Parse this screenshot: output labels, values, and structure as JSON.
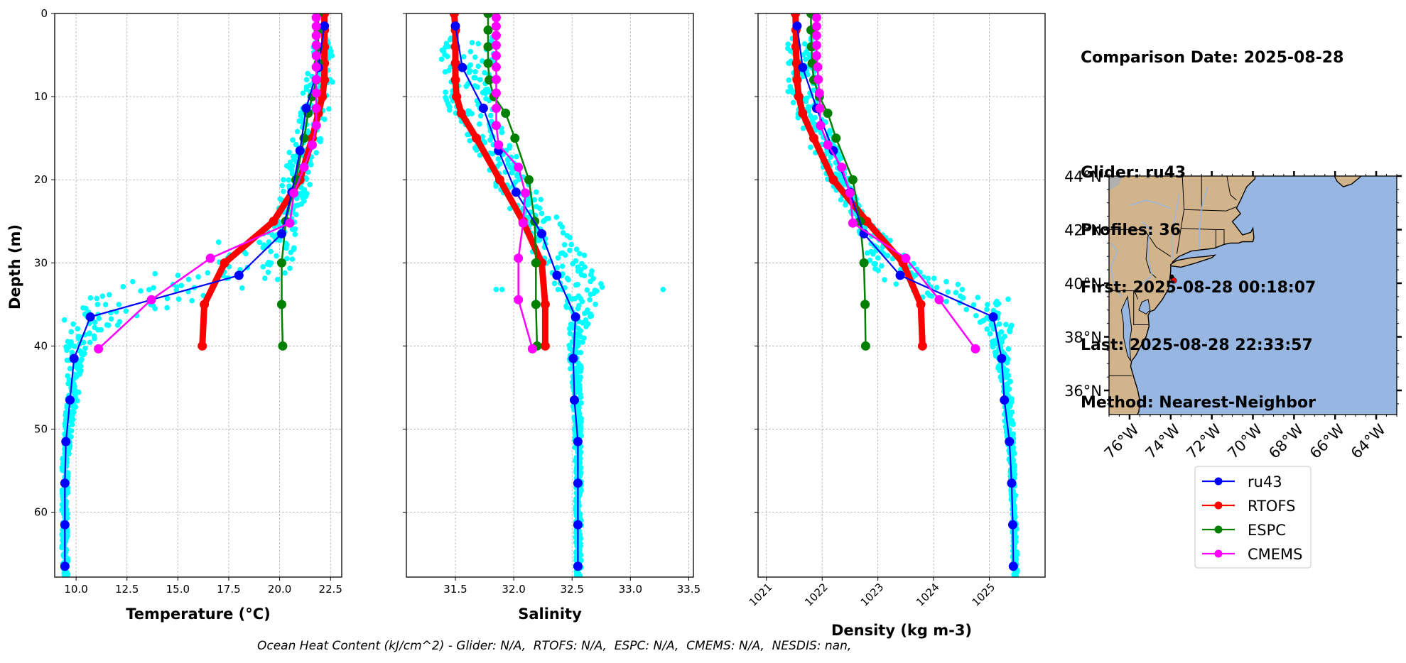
{
  "info": {
    "comparison_date": "Comparison Date: 2025-08-28",
    "glider": "Glider: ru43",
    "profiles": "Profiles: 36",
    "first": "First: 2025-08-28 00:18:07",
    "last": "Last: 2025-08-28 22:33:57",
    "method": "Method: Nearest-Neighbor"
  },
  "footer": "Ocean Heat Content (kJ/cm^2) - Glider: N/A,  RTOFS: N/A,  ESPC: N/A,  CMEMS: N/A,  NESDIS: nan,",
  "colors": {
    "ru43": "#0000ff",
    "RTOFS": "#ff0000",
    "ESPC": "#008000",
    "CMEMS": "#ff00ff",
    "glider_scatter": "#00ffff",
    "land": "#d2b48c",
    "ocean": "#97b6e1",
    "grid": "#b0b0b0"
  },
  "legend": {
    "entries": [
      "ru43",
      "RTOFS",
      "ESPC",
      "CMEMS"
    ],
    "placement": "below-map"
  },
  "chart_data": [
    {
      "type": "line",
      "id": "temperature",
      "title": "",
      "xlabel": "Temperature (°C)",
      "ylabel": "Depth (m)",
      "xlim": [
        8.95,
        23.05
      ],
      "ylim": [
        67.8,
        0
      ],
      "xticks": [
        10.0,
        12.5,
        15.0,
        17.5,
        20.0,
        22.5
      ],
      "xtick_labels": [
        "10.0",
        "12.5",
        "15.0",
        "17.5",
        "20.0",
        "22.5"
      ],
      "yticks": [
        0,
        10,
        20,
        30,
        40,
        50,
        60
      ],
      "ytick_labels": [
        "0",
        "10",
        "20",
        "30",
        "40",
        "50",
        "60"
      ],
      "grid": true,
      "scatter_envelope": {
        "name": "glider profiles (all)",
        "depth": [
          3,
          5,
          8,
          10,
          12,
          15,
          18,
          20,
          22,
          24,
          26,
          28,
          30,
          32,
          34,
          36,
          38,
          40,
          42,
          44,
          46,
          48,
          50,
          55,
          60,
          65,
          68
        ],
        "min": [
          21.6,
          21.5,
          21.3,
          21.1,
          20.9,
          20.6,
          20.3,
          20.1,
          20.0,
          19.9,
          19.6,
          18.4,
          16.0,
          12.8,
          10.0,
          9.4,
          9.4,
          9.4,
          9.5,
          9.6,
          9.6,
          9.5,
          9.4,
          9.3,
          9.3,
          9.3,
          9.3
        ],
        "max": [
          22.6,
          22.6,
          22.6,
          22.6,
          22.4,
          22.1,
          21.8,
          21.6,
          21.3,
          21.0,
          20.9,
          20.8,
          20.8,
          20.6,
          17.4,
          13.5,
          11.3,
          10.6,
          10.3,
          10.2,
          10.2,
          10.0,
          9.8,
          9.6,
          9.6,
          9.6,
          9.6
        ],
        "outliers": [
          [
            26.2,
            19.4
          ],
          [
            26.5,
            19.2
          ],
          [
            27.5,
            17.0
          ],
          [
            31.5,
            15.0
          ],
          [
            32.0,
            19.9
          ],
          [
            33.0,
            13.8
          ],
          [
            34.0,
            11.3
          ],
          [
            35.0,
            12.1
          ],
          [
            36.0,
            11.7
          ]
        ]
      },
      "series": [
        {
          "name": "ru43",
          "depth": [
            1.5,
            6.5,
            11.4,
            16.5,
            21.5,
            26.5,
            31.5,
            36.5,
            41.5,
            46.5,
            51.5,
            56.5,
            61.5,
            66.5
          ],
          "values": [
            22.2,
            21.9,
            21.3,
            21.0,
            20.6,
            20.1,
            18.0,
            10.7,
            9.9,
            9.7,
            9.5,
            9.45,
            9.45,
            9.45
          ]
        },
        {
          "name": "RTOFS",
          "depth": [
            0,
            2,
            4,
            6,
            8,
            10,
            12,
            15,
            20,
            25,
            30,
            35,
            40
          ],
          "values": [
            22.2,
            22.2,
            22.2,
            22.2,
            22.2,
            22.1,
            21.9,
            21.6,
            21.0,
            19.7,
            17.3,
            16.3,
            16.2
          ]
        },
        {
          "name": "ESPC",
          "depth": [
            0,
            2,
            4,
            6,
            8,
            10,
            12,
            15,
            20,
            25,
            30,
            35,
            40
          ],
          "values": [
            21.9,
            21.9,
            21.9,
            21.9,
            21.8,
            21.6,
            21.4,
            21.2,
            20.8,
            20.3,
            20.1,
            20.1,
            20.15
          ]
        },
        {
          "name": "CMEMS",
          "depth": [
            0.49,
            1.54,
            2.65,
            3.82,
            5.08,
            6.44,
            7.93,
            9.57,
            11.41,
            13.47,
            15.81,
            18.5,
            21.6,
            25.21,
            29.44,
            34.43,
            40.34
          ],
          "values": [
            21.8,
            21.8,
            21.8,
            21.8,
            21.8,
            21.8,
            21.8,
            21.8,
            21.8,
            21.8,
            21.6,
            21.2,
            20.7,
            20.5,
            16.6,
            13.7,
            11.1
          ]
        }
      ]
    },
    {
      "type": "line",
      "id": "salinity",
      "title": "",
      "xlabel": "Salinity",
      "ylabel": "",
      "xlim": [
        31.08,
        33.54
      ],
      "ylim": [
        67.8,
        0
      ],
      "xticks": [
        31.5,
        32.0,
        32.5,
        33.0,
        33.5
      ],
      "xtick_labels": [
        "31.5",
        "32.0",
        "32.5",
        "33.0",
        "33.5"
      ],
      "yticks": [
        0,
        10,
        20,
        30,
        40,
        50,
        60
      ],
      "grid": true,
      "scatter_envelope": {
        "name": "glider profiles (all)",
        "depth": [
          3,
          5,
          8,
          10,
          12,
          15,
          18,
          20,
          22,
          24,
          26,
          28,
          30,
          32,
          34,
          36,
          38,
          40,
          42,
          44,
          46,
          48,
          50,
          55,
          60,
          65,
          68
        ],
        "min": [
          31.38,
          31.37,
          31.38,
          31.4,
          31.45,
          31.58,
          31.72,
          31.8,
          31.9,
          31.98,
          32.05,
          32.12,
          32.2,
          32.3,
          32.4,
          32.47,
          32.46,
          32.47,
          32.48,
          32.49,
          32.5,
          32.51,
          32.52,
          32.53,
          32.53,
          32.53,
          32.53
        ],
        "max": [
          31.85,
          31.85,
          31.84,
          31.83,
          31.85,
          31.93,
          32.05,
          32.12,
          32.22,
          32.33,
          32.45,
          32.55,
          32.68,
          32.78,
          32.76,
          32.68,
          32.62,
          32.6,
          32.58,
          32.58,
          32.58,
          32.58,
          32.58,
          32.58,
          32.58,
          32.58,
          32.58
        ]
      },
      "outliers": [
        [
          33.2,
          33.28
        ],
        [
          33.2,
          31.85
        ],
        [
          33.2,
          31.9
        ]
      ],
      "series": [
        {
          "name": "ru43",
          "depth": [
            1.5,
            6.5,
            11.4,
            16.5,
            21.5,
            26.5,
            31.5,
            36.5,
            41.5,
            46.5,
            51.5,
            56.5,
            61.5,
            66.5
          ],
          "values": [
            31.5,
            31.56,
            31.74,
            31.87,
            32.02,
            32.24,
            32.37,
            32.53,
            32.51,
            32.52,
            32.55,
            32.55,
            32.55,
            32.55
          ]
        },
        {
          "name": "RTOFS",
          "depth": [
            0,
            2,
            4,
            6,
            8,
            10,
            12,
            15,
            20,
            25,
            30,
            35,
            40
          ],
          "values": [
            31.49,
            31.5,
            31.5,
            31.5,
            31.5,
            31.51,
            31.55,
            31.68,
            31.88,
            32.08,
            32.24,
            32.27,
            32.27
          ]
        },
        {
          "name": "ESPC",
          "depth": [
            0,
            2,
            4,
            6,
            8,
            10,
            12,
            15,
            20,
            25,
            30,
            35,
            40
          ],
          "values": [
            31.78,
            31.78,
            31.78,
            31.78,
            31.79,
            31.83,
            31.93,
            32.01,
            32.13,
            32.18,
            32.19,
            32.19,
            32.2
          ]
        },
        {
          "name": "CMEMS",
          "depth": [
            0.49,
            1.54,
            2.65,
            3.82,
            5.08,
            6.44,
            7.93,
            9.57,
            11.41,
            13.47,
            15.81,
            18.5,
            21.6,
            25.21,
            29.44,
            34.43,
            40.34
          ],
          "values": [
            31.85,
            31.85,
            31.85,
            31.85,
            31.85,
            31.85,
            31.85,
            31.85,
            31.85,
            31.85,
            31.87,
            32.04,
            32.1,
            32.08,
            32.04,
            32.04,
            32.16
          ]
        }
      ]
    },
    {
      "type": "line",
      "id": "density",
      "title": "",
      "xlabel": "Density (kg m-3)",
      "ylabel": "",
      "xlim": [
        1020.85,
        1026.0
      ],
      "ylim": [
        67.8,
        0
      ],
      "xticks": [
        1021,
        1022,
        1023,
        1024,
        1025
      ],
      "xtick_labels": [
        "1021",
        "1022",
        "1023",
        "1024",
        "1025"
      ],
      "yticks": [
        0,
        10,
        20,
        30,
        40,
        50,
        60
      ],
      "grid": true,
      "scatter_envelope": {
        "name": "glider profiles (all)",
        "depth": [
          3,
          5,
          8,
          10,
          12,
          15,
          18,
          20,
          22,
          24,
          26,
          28,
          30,
          32,
          34,
          36,
          38,
          40,
          42,
          44,
          46,
          48,
          50,
          55,
          60,
          65,
          68
        ],
        "min": [
          1021.35,
          1021.35,
          1021.36,
          1021.4,
          1021.5,
          1021.7,
          1021.95,
          1022.1,
          1022.3,
          1022.5,
          1022.65,
          1022.75,
          1022.85,
          1023.1,
          1023.6,
          1024.6,
          1024.95,
          1025.05,
          1025.12,
          1025.18,
          1025.22,
          1025.25,
          1025.3,
          1025.36,
          1025.4,
          1025.42,
          1025.43
        ],
        "max": [
          1021.85,
          1021.87,
          1021.9,
          1021.95,
          1022.05,
          1022.2,
          1022.4,
          1022.5,
          1022.6,
          1022.75,
          1023.0,
          1023.3,
          1023.6,
          1024.0,
          1025.3,
          1025.45,
          1025.4,
          1025.35,
          1025.35,
          1025.38,
          1025.4,
          1025.42,
          1025.44,
          1025.46,
          1025.48,
          1025.5,
          1025.5
        ]
      },
      "series": [
        {
          "name": "ru43",
          "depth": [
            1.5,
            6.5,
            11.4,
            16.5,
            21.5,
            26.5,
            31.5,
            36.5,
            41.5,
            46.5,
            51.5,
            56.5,
            61.5,
            66.5
          ],
          "values": [
            1021.55,
            1021.65,
            1021.9,
            1022.2,
            1022.5,
            1022.75,
            1023.4,
            1025.07,
            1025.22,
            1025.27,
            1025.36,
            1025.4,
            1025.42,
            1025.43
          ]
        },
        {
          "name": "RTOFS",
          "depth": [
            0,
            2,
            4,
            6,
            8,
            10,
            12,
            15,
            20,
            25,
            30,
            35,
            40
          ],
          "values": [
            1021.52,
            1021.53,
            1021.53,
            1021.54,
            1021.55,
            1021.58,
            1021.65,
            1021.85,
            1022.2,
            1022.8,
            1023.45,
            1023.77,
            1023.8
          ]
        },
        {
          "name": "ESPC",
          "depth": [
            0,
            2,
            4,
            6,
            8,
            10,
            12,
            15,
            20,
            25,
            30,
            35,
            40
          ],
          "values": [
            1021.8,
            1021.8,
            1021.81,
            1021.82,
            1021.85,
            1021.95,
            1022.1,
            1022.25,
            1022.55,
            1022.68,
            1022.75,
            1022.77,
            1022.78
          ]
        },
        {
          "name": "CMEMS",
          "depth": [
            0.49,
            1.54,
            2.65,
            3.82,
            5.08,
            6.44,
            7.93,
            9.57,
            11.41,
            13.47,
            15.81,
            18.5,
            21.6,
            25.21,
            29.44,
            34.43,
            40.34
          ],
          "values": [
            1021.9,
            1021.9,
            1021.9,
            1021.9,
            1021.9,
            1021.92,
            1021.93,
            1021.95,
            1021.96,
            1021.97,
            1022.1,
            1022.35,
            1022.5,
            1022.55,
            1023.5,
            1024.1,
            1024.75
          ]
        }
      ]
    },
    {
      "type": "map",
      "id": "location-map",
      "lon_range": [
        -77.0,
        -63.0
      ],
      "lat_range": [
        35.1,
        44.0
      ],
      "xticks": [
        -76,
        -74,
        -72,
        -70,
        -68,
        -66,
        -64
      ],
      "xtick_labels": [
        "76°W",
        "74°W",
        "72°W",
        "70°W",
        "68°W",
        "66°W",
        "64°W"
      ],
      "yticks": [
        36,
        38,
        40,
        42,
        44
      ],
      "ytick_labels": [
        "36°N",
        "38°N",
        "40°N",
        "42°N",
        "44°N"
      ],
      "glider_track": [
        [
          -73.95,
          40.25
        ],
        [
          -73.9,
          40.15
        ],
        [
          -73.85,
          40.1
        ]
      ],
      "glider_position": [
        -73.85,
        40.1
      ]
    }
  ]
}
